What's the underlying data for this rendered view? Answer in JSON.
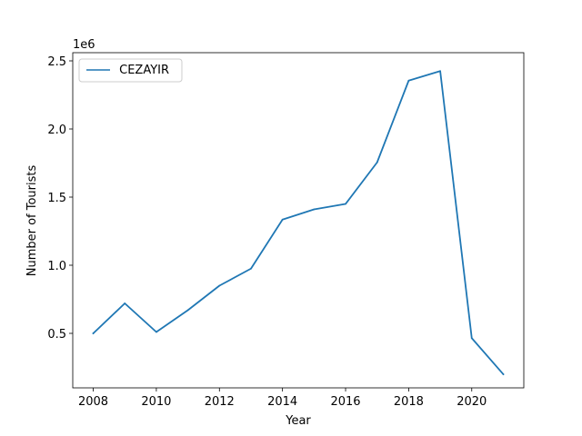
{
  "chart_data": {
    "type": "line",
    "xlabel": "Year",
    "ylabel": "Number of Tourists",
    "y_offset_label": "1e6",
    "xlim": [
      2007.35,
      2021.65
    ],
    "ylim": [
      0.1,
      2.56
    ],
    "y_unit_scale": 1000000,
    "x_ticks": [
      2008,
      2010,
      2012,
      2014,
      2016,
      2018,
      2020
    ],
    "x_tick_labels": [
      "2008",
      "2010",
      "2012",
      "2014",
      "2016",
      "2018",
      "2020"
    ],
    "y_ticks": [
      0.5,
      1.0,
      1.5,
      2.0,
      2.5
    ],
    "y_tick_labels": [
      "0.5",
      "1.0",
      "1.5",
      "2.0",
      "2.5"
    ],
    "grid": false,
    "legend_position": "top-left",
    "series": [
      {
        "name": " CEZAYIR",
        "color": "#1f77b4",
        "x": [
          2008,
          2009,
          2010,
          2011,
          2012,
          2013,
          2014,
          2015,
          2016,
          2017,
          2018,
          2019,
          2020,
          2021
        ],
        "y": [
          500000,
          720000,
          510000,
          670000,
          850000,
          975000,
          1335000,
          1410000,
          1450000,
          1755000,
          2355000,
          2425000,
          465000,
          200000
        ]
      }
    ]
  }
}
